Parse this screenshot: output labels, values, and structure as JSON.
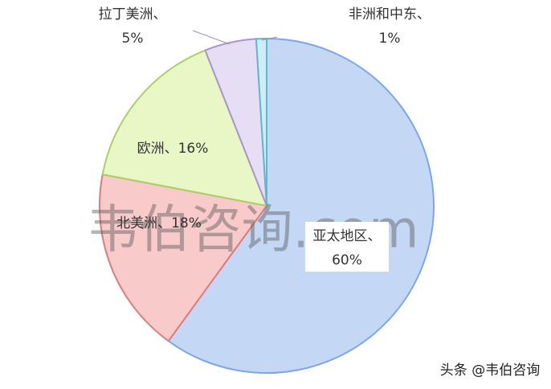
{
  "chart_data": {
    "type": "pie",
    "categories": [
      "亚太地区、",
      "北美洲、",
      "欧洲、",
      "拉丁美洲、",
      "非洲和中东、"
    ],
    "values": [
      60,
      18,
      16,
      5,
      1
    ],
    "value_labels": [
      "60%",
      "18%",
      "16%",
      "5%",
      "1%"
    ],
    "colors": [
      "#c4d8f6",
      "#f8caca",
      "#e9f6c6",
      "#e6def4",
      "#cdeef6"
    ],
    "edge_colors": [
      "#7ea6e2",
      "#e27a7a",
      "#a9d164",
      "#a993d2",
      "#5fb7d2"
    ],
    "annotations": [
      "韦伯咨询.com",
      "头条 @韦伯咨询"
    ]
  }
}
